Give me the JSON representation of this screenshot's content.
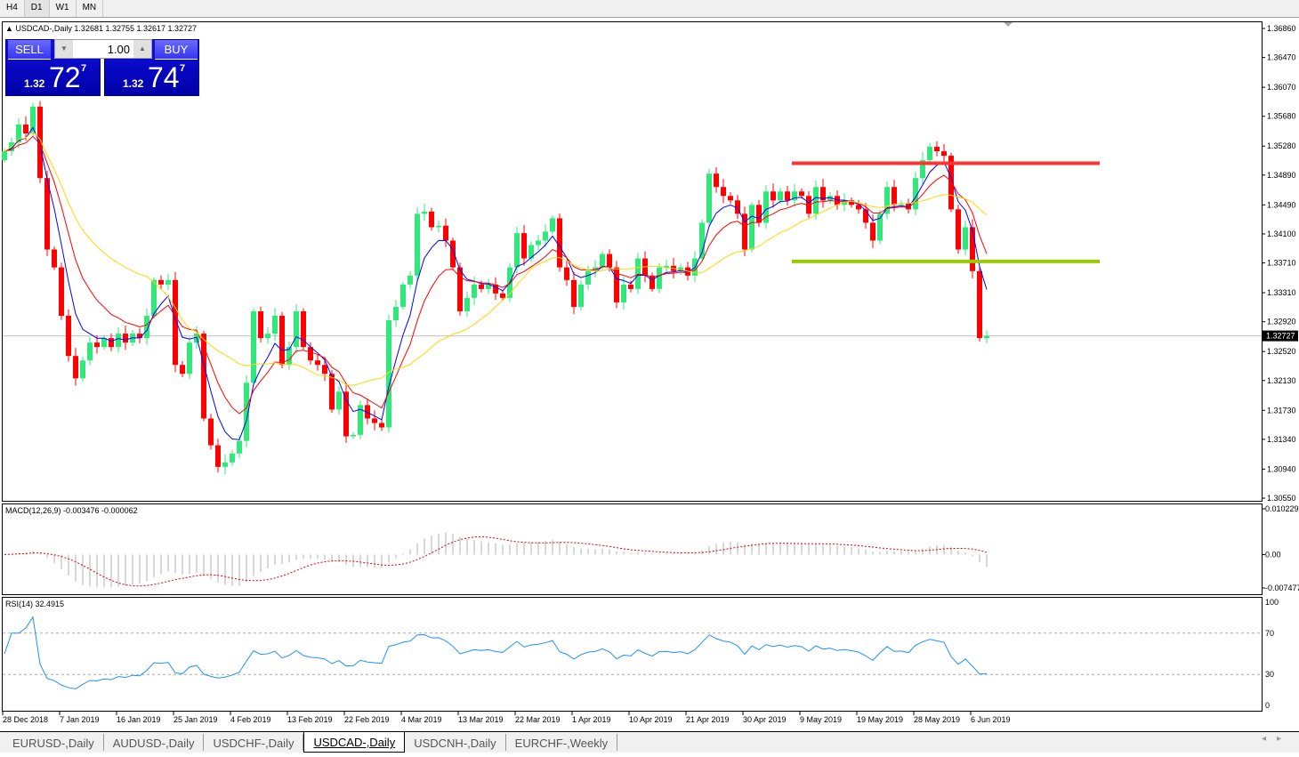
{
  "timeframes": [
    "H4",
    "D1",
    "W1",
    "MN"
  ],
  "active_timeframe": "D1",
  "chart": {
    "symbol_line": "USDCAD-,Daily  1.32681 1.32755 1.32617 1.32727",
    "current_price_label": "1.32727",
    "macd_label": "MACD(12,26,9) -0.003476 -0.000062",
    "rsi_label": "RSI(14) 32.4915"
  },
  "trade_panel": {
    "sell_label": "SELL",
    "buy_label": "BUY",
    "lot": "1.00",
    "sell_prefix": "1.32",
    "sell_big": "72",
    "sell_sup": "7",
    "buy_prefix": "1.32",
    "buy_big": "74",
    "buy_sup": "7"
  },
  "chart_data": {
    "type": "candlestick",
    "price_axis_ticks": [
      "1.36860",
      "1.36470",
      "1.36070",
      "1.35680",
      "1.35280",
      "1.34890",
      "1.34490",
      "1.34100",
      "1.33710",
      "1.33310",
      "1.32920",
      "1.32520",
      "1.32130",
      "1.31730",
      "1.31340",
      "1.30940",
      "1.30550"
    ],
    "ylim": [
      1.3055,
      1.3686
    ],
    "date_ticks": [
      "28 Dec 2018",
      "7 Jan 2019",
      "16 Jan 2019",
      "25 Jan 2019",
      "4 Feb 2019",
      "13 Feb 2019",
      "22 Feb 2019",
      "4 Mar 2019",
      "13 Mar 2019",
      "22 Mar 2019",
      "1 Apr 2019",
      "10 Apr 2019",
      "21 Apr 2019",
      "30 Apr 2019",
      "9 May 2019",
      "19 May 2019",
      "28 May 2019",
      "6 Jun 2019"
    ],
    "first_open": 1.3509,
    "closes": [
      1.3521,
      1.3533,
      1.3557,
      1.3545,
      1.3581,
      1.3485,
      1.3389,
      1.3365,
      1.33,
      1.3246,
      1.3216,
      1.324,
      1.3264,
      1.3258,
      1.327,
      1.3258,
      1.3276,
      1.3264,
      1.3276,
      1.327,
      1.33,
      1.3348,
      1.3342,
      1.3348,
      1.3234,
      1.3222,
      1.3264,
      1.3276,
      1.3162,
      1.3126,
      1.3097,
      1.3103,
      1.3115,
      1.3132,
      1.321,
      1.3306,
      1.327,
      1.3276,
      1.33,
      1.3234,
      1.3258,
      1.3306,
      1.3258,
      1.324,
      1.3234,
      1.3222,
      1.3174,
      1.3198,
      1.3138,
      1.314,
      1.318,
      1.3162,
      1.3156,
      1.315,
      1.3294,
      1.3312,
      1.3342,
      1.3354,
      1.3437,
      1.344,
      1.3419,
      1.3421,
      1.3401,
      1.3365,
      1.3306,
      1.3324,
      1.3342,
      1.3336,
      1.3342,
      1.333,
      1.3324,
      1.3365,
      1.3411,
      1.3377,
      1.3395,
      1.3401,
      1.3413,
      1.3431,
      1.3365,
      1.3348,
      1.3312,
      1.3342,
      1.336,
      1.3365,
      1.3383,
      1.3365,
      1.3318,
      1.3342,
      1.3336,
      1.3377,
      1.3354,
      1.3336,
      1.3365,
      1.3367,
      1.336,
      1.3365,
      1.3354,
      1.3377,
      1.3425,
      1.3491,
      1.3473,
      1.3461,
      1.3455,
      1.3437,
      1.3389,
      1.3449,
      1.3425,
      1.3467,
      1.3455,
      1.3467,
      1.3455,
      1.3467,
      1.3461,
      1.3437,
      1.3473,
      1.3455,
      1.3461,
      1.3449,
      1.3455,
      1.3449,
      1.3443,
      1.3425,
      1.3401,
      1.3437,
      1.3473,
      1.3449,
      1.3451,
      1.3443,
      1.3485,
      1.3509,
      1.3527,
      1.3521,
      1.3515,
      1.3443,
      1.3389,
      1.3419,
      1.336,
      1.327,
      1.3273
    ],
    "moving_averages": [
      {
        "color": "#0000ff"
      },
      {
        "color": "#ff0000"
      },
      {
        "color": "#ffd700"
      }
    ],
    "horizontal_levels": [
      {
        "price": 1.3505,
        "color": "#ff3333"
      },
      {
        "price": 1.3373,
        "color": "#99cc00"
      }
    ],
    "bull_color": "#33e87a",
    "bear_color": "#ff0000",
    "macd": {
      "ticks": [
        "0.010229",
        "0.00",
        "-0.007477"
      ],
      "ylim": [
        -0.007477,
        0.010229
      ]
    },
    "rsi": {
      "ticks": [
        "100",
        "70",
        "30",
        "0"
      ],
      "ylim": [
        0,
        100
      ],
      "line_color": "#1e90ff"
    }
  },
  "symbol_tabs": [
    "EURUSD-,Daily",
    "AUDUSD-,Daily",
    "USDCHF-,Daily",
    "USDCAD-,Daily",
    "USDCNH-,Daily",
    "EURCHF-,Weekly"
  ],
  "active_symbol_tab": "USDCAD-,Daily"
}
